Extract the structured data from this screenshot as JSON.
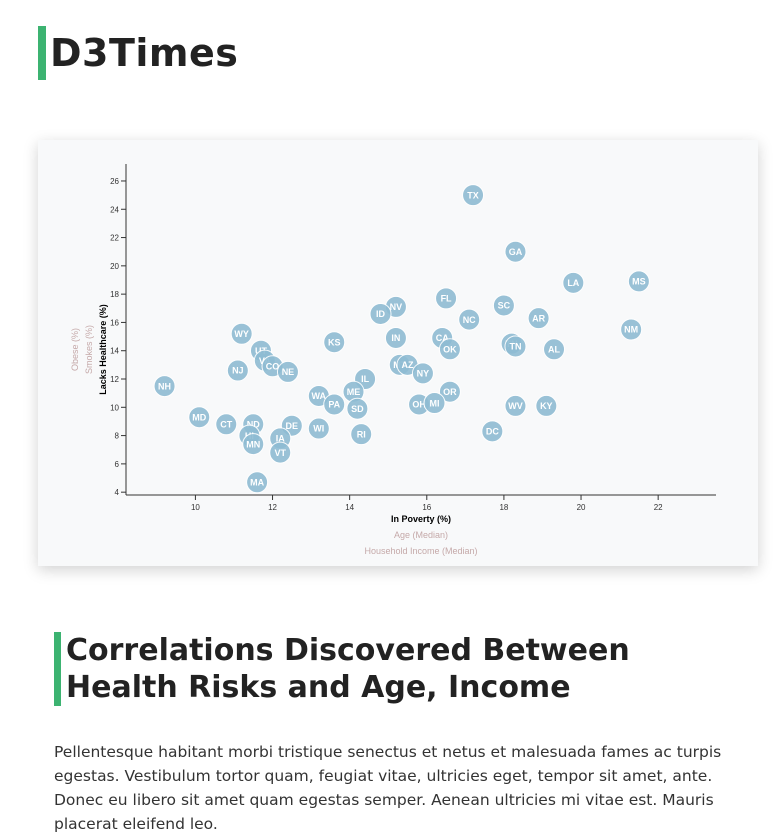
{
  "header": {
    "title": "D3Times"
  },
  "article": {
    "heading": "Correlations Discovered Between Health Risks and Age, Income",
    "body": "Pellentesque habitant morbi tristique senectus et netus et malesuada fames ac turpis egestas. Vestibulum tortor quam, feugiat vitae, ultricies eget, tempor sit amet, ante. Donec eu libero sit amet quam egestas semper. Aenean ultricies mi vitae est. Mauris placerat eleifend leo."
  },
  "colors": {
    "accent": "#3cb371",
    "point": "#8fbcd3",
    "inactive_label": "#c5a9a9"
  },
  "chart_data": {
    "type": "scatter",
    "x_axis_options": [
      "In Poverty (%)",
      "Age (Median)",
      "Household Income (Median)"
    ],
    "x_active": "In Poverty (%)",
    "y_axis_options": [
      "Obese (%)",
      "Smokes (%)",
      "Lacks Healthcare (%)"
    ],
    "y_active": "Lacks Healthcare (%)",
    "xlim": [
      8.2,
      23.5
    ],
    "ylim": [
      3.8,
      27.2
    ],
    "x_ticks": [
      10,
      12,
      14,
      16,
      18,
      20,
      22
    ],
    "y_ticks": [
      4,
      6,
      8,
      10,
      12,
      14,
      16,
      18,
      20,
      22,
      24,
      26
    ],
    "points": [
      {
        "abbr": "TX",
        "x": 17.2,
        "y": 25.0
      },
      {
        "abbr": "GA",
        "x": 18.3,
        "y": 21.0
      },
      {
        "abbr": "LA",
        "x": 19.8,
        "y": 18.8
      },
      {
        "abbr": "MS",
        "x": 21.5,
        "y": 18.9
      },
      {
        "abbr": "FL",
        "x": 16.5,
        "y": 17.7
      },
      {
        "abbr": "SC",
        "x": 18.0,
        "y": 17.2
      },
      {
        "abbr": "NV",
        "x": 15.2,
        "y": 17.1
      },
      {
        "abbr": "ID",
        "x": 14.8,
        "y": 16.6
      },
      {
        "abbr": "NC",
        "x": 17.1,
        "y": 16.2
      },
      {
        "abbr": "AR",
        "x": 18.9,
        "y": 16.3
      },
      {
        "abbr": "NM",
        "x": 21.3,
        "y": 15.5
      },
      {
        "abbr": "WY",
        "x": 11.2,
        "y": 15.2
      },
      {
        "abbr": "IN",
        "x": 15.2,
        "y": 14.9
      },
      {
        "abbr": "CA",
        "x": 16.4,
        "y": 14.9
      },
      {
        "abbr": "KS",
        "x": 13.6,
        "y": 14.6
      },
      {
        "abbr": "OK",
        "x": 16.6,
        "y": 14.1
      },
      {
        "abbr": "TN",
        "x": 18.2,
        "y": 14.5
      },
      {
        "abbr": "TN",
        "x": 18.3,
        "y": 14.3
      },
      {
        "abbr": "AL",
        "x": 19.3,
        "y": 14.1
      },
      {
        "abbr": "UT",
        "x": 11.7,
        "y": 14.0
      },
      {
        "abbr": "VA",
        "x": 11.8,
        "y": 13.3
      },
      {
        "abbr": "CO",
        "x": 12.0,
        "y": 12.9
      },
      {
        "abbr": "NE",
        "x": 12.4,
        "y": 12.5
      },
      {
        "abbr": "NJ",
        "x": 11.1,
        "y": 12.6
      },
      {
        "abbr": "MT",
        "x": 15.3,
        "y": 13.0
      },
      {
        "abbr": "AZ",
        "x": 15.5,
        "y": 13.0
      },
      {
        "abbr": "NY",
        "x": 15.9,
        "y": 12.4
      },
      {
        "abbr": "IL",
        "x": 14.4,
        "y": 12.0
      },
      {
        "abbr": "NH",
        "x": 9.2,
        "y": 11.5
      },
      {
        "abbr": "ME",
        "x": 14.1,
        "y": 11.1
      },
      {
        "abbr": "OR",
        "x": 16.6,
        "y": 11.1
      },
      {
        "abbr": "WA",
        "x": 13.2,
        "y": 10.8
      },
      {
        "abbr": "PA",
        "x": 13.6,
        "y": 10.2
      },
      {
        "abbr": "SD",
        "x": 14.2,
        "y": 9.9
      },
      {
        "abbr": "OH",
        "x": 15.8,
        "y": 10.2
      },
      {
        "abbr": "MI",
        "x": 16.2,
        "y": 10.3
      },
      {
        "abbr": "WV",
        "x": 18.3,
        "y": 10.1
      },
      {
        "abbr": "KY",
        "x": 19.1,
        "y": 10.1
      },
      {
        "abbr": "MD",
        "x": 10.1,
        "y": 9.3
      },
      {
        "abbr": "CT",
        "x": 10.8,
        "y": 8.8
      },
      {
        "abbr": "ND",
        "x": 11.5,
        "y": 8.8
      },
      {
        "abbr": "DE",
        "x": 12.5,
        "y": 8.7
      },
      {
        "abbr": "WI",
        "x": 13.2,
        "y": 8.5
      },
      {
        "abbr": "DC",
        "x": 17.7,
        "y": 8.3
      },
      {
        "abbr": "RI",
        "x": 14.3,
        "y": 8.1
      },
      {
        "abbr": "HI",
        "x": 11.4,
        "y": 8.0
      },
      {
        "abbr": "IA",
        "x": 12.2,
        "y": 7.8
      },
      {
        "abbr": "MN",
        "x": 11.5,
        "y": 7.4
      },
      {
        "abbr": "VT",
        "x": 12.2,
        "y": 6.8
      },
      {
        "abbr": "MA",
        "x": 11.6,
        "y": 4.7
      }
    ]
  }
}
